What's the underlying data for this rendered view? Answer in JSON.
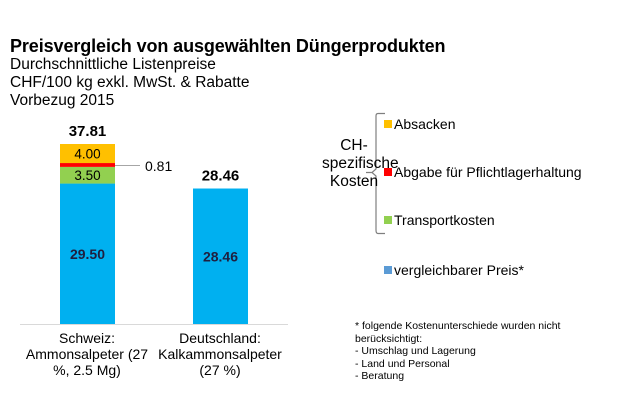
{
  "header": {
    "title": "Preisvergleich von ausgewählten Düngerprodukten",
    "subtitle_lines": [
      "Durchschnittliche Listenpreise",
      "CHF/100 kg exkl. MwSt. & Rabatte",
      "Vorbezug 2015"
    ]
  },
  "chart_data": {
    "type": "bar",
    "stacked": true,
    "title": "Preisvergleich von ausgewählten Düngerprodukten",
    "subtitle": "Durchschnittliche Listenpreise; CHF/100 kg exkl. MwSt. & Rabatte; Vorbezug 2015",
    "xlabel": "",
    "ylabel": "CHF/100 kg",
    "ylim": [
      0,
      38
    ],
    "grid": false,
    "categories": [
      "Schweiz: Ammonsalpeter (27 %, 2.5 Mg)",
      "Deutschland: Kalkammonsalpeter (27 %)"
    ],
    "category_label_lines": [
      [
        "Schweiz:",
        "Ammonsalpeter (27",
        "%, 2.5 Mg)"
      ],
      [
        "Deutschland:",
        "Kalkammonsalpeter",
        "(27 %)"
      ]
    ],
    "series": [
      {
        "name": "vergleichbarer Preis*",
        "color": "#00b0f0",
        "values": [
          29.5,
          28.46
        ],
        "labels": [
          "29.50",
          "28.46"
        ]
      },
      {
        "name": "Transportkosten",
        "color": "#92d050",
        "values": [
          3.5,
          0
        ],
        "labels": [
          "3.50",
          ""
        ]
      },
      {
        "name": "Abgabe für Pflichtlagerhaltung",
        "color": "#ff0000",
        "values": [
          0.81,
          0
        ],
        "labels": [
          "0.81",
          ""
        ]
      },
      {
        "name": "Absacken",
        "color": "#ffc000",
        "values": [
          4.0,
          0
        ],
        "labels": [
          "4.00",
          ""
        ]
      }
    ],
    "totals": [
      37.81,
      28.46
    ],
    "total_labels": [
      "37.81",
      "28.46"
    ],
    "annotations": [
      {
        "text": "0.81",
        "points_to": "Abgabe für Pflichtlagerhaltung (Schweiz)"
      }
    ],
    "legend": {
      "placement": "right",
      "group_label_lines": [
        "CH-",
        "spezifische",
        "Kosten"
      ],
      "grouped_items": [
        "Absacken",
        "Abgabe für Pflichtlagerhaltung",
        "Transportkosten"
      ],
      "other_items": [
        "vergleichbarer Preis*"
      ]
    }
  },
  "legend": {
    "group_label_lines": [
      "CH-",
      "spezifische",
      "Kosten"
    ],
    "items": [
      {
        "label": "Absacken",
        "color": "#ffc000"
      },
      {
        "label": "Abgabe für Pflichtlagerhaltung",
        "color": "#ff0000"
      },
      {
        "label": "Transportkosten",
        "color": "#92d050"
      },
      {
        "label": "vergleichbarer Preis*",
        "color": "#5b9bd5"
      }
    ]
  },
  "footnote": {
    "lines": [
      "* folgende Kostenunterschiede wurden nicht",
      "berücksichtigt:",
      "- Umschlag und Lagerung",
      "- Land und Personal",
      "- Beratung"
    ]
  }
}
